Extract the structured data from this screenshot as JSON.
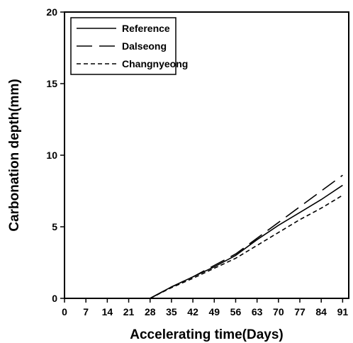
{
  "chart_data": {
    "type": "line",
    "title": "",
    "xlabel": "Accelerating time(Days)",
    "ylabel": "Carbonation depth(mm)",
    "xlim": [
      0,
      93
    ],
    "ylim": [
      0,
      20
    ],
    "xticks": [
      0,
      7,
      14,
      21,
      28,
      35,
      42,
      49,
      56,
      63,
      70,
      77,
      84,
      91
    ],
    "yticks": [
      0,
      5,
      10,
      15,
      20
    ],
    "grid": false,
    "legend_position": "top-left",
    "series": [
      {
        "name": "Reference",
        "dash": "solid",
        "color": "#000000",
        "x": [
          28,
          35,
          42,
          49,
          56,
          63,
          70,
          77,
          84,
          91
        ],
        "y": [
          0,
          0.8,
          1.5,
          2.2,
          3.0,
          4.1,
          5.1,
          6.0,
          6.9,
          7.9
        ]
      },
      {
        "name": "Dalseong",
        "dash": "long-dash",
        "color": "#000000",
        "x": [
          28,
          35,
          42,
          49,
          56,
          63,
          70,
          77,
          84,
          91
        ],
        "y": [
          0,
          0.8,
          1.5,
          2.3,
          3.1,
          4.2,
          5.3,
          6.4,
          7.5,
          8.6
        ]
      },
      {
        "name": "Changnyeong",
        "dash": "short-dash",
        "color": "#000000",
        "x": [
          28,
          35,
          42,
          49,
          56,
          63,
          70,
          77,
          84,
          91
        ],
        "y": [
          0,
          0.75,
          1.4,
          2.1,
          2.8,
          3.7,
          4.6,
          5.5,
          6.3,
          7.2
        ]
      }
    ]
  }
}
